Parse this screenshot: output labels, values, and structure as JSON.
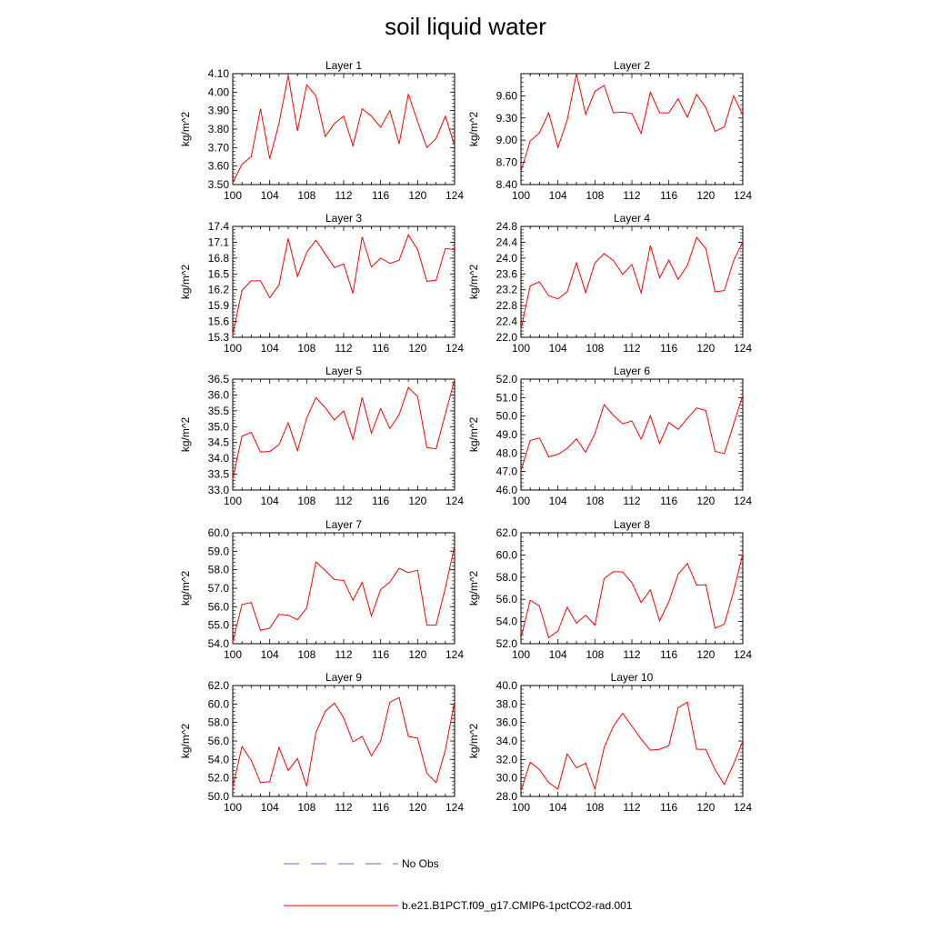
{
  "title": "soil liquid water",
  "legend": {
    "placement": "bottom",
    "items": [
      {
        "label": "No Obs",
        "style": "dashed",
        "color": "#6666cc"
      },
      {
        "label": "b.e21.B1PCT.f09_g17.CMIP6-1pctCO2-rad.001",
        "style": "solid",
        "color": "#ff0000"
      }
    ]
  },
  "chart_data": [
    {
      "type": "line",
      "title": "Layer 1",
      "ylabel": "kg/m^2",
      "xlim": [
        100,
        124
      ],
      "ylim": [
        3.5,
        4.1
      ],
      "xticks": [
        "100",
        "104",
        "108",
        "112",
        "116",
        "120",
        "124"
      ],
      "yticks": [
        "3.50",
        "3.60",
        "3.70",
        "3.80",
        "3.90",
        "4.00",
        "4.10"
      ],
      "x": [
        100,
        101,
        102,
        103,
        104,
        105,
        106,
        107,
        108,
        109,
        110,
        111,
        112,
        113,
        114,
        115,
        116,
        117,
        118,
        119,
        120,
        121,
        122,
        123,
        124
      ],
      "series": [
        {
          "name": "b.e21.B1PCT.f09_g17.CMIP6-1pctCO2-rad.001",
          "color": "#ff0000",
          "values": [
            3.51,
            3.61,
            3.65,
            3.91,
            3.64,
            3.83,
            4.09,
            3.79,
            4.04,
            3.98,
            3.76,
            3.83,
            3.87,
            3.71,
            3.91,
            3.87,
            3.81,
            3.9,
            3.72,
            3.99,
            3.84,
            3.7,
            3.75,
            3.87,
            3.71
          ]
        }
      ]
    },
    {
      "type": "line",
      "title": "Layer 2",
      "ylabel": "kg/m^2",
      "xlim": [
        100,
        124
      ],
      "ylim": [
        8.4,
        9.9
      ],
      "xticks": [
        "100",
        "104",
        "108",
        "112",
        "116",
        "120",
        "124"
      ],
      "yticks": [
        "8.40",
        "8.70",
        "9.00",
        "9.30",
        "9.60"
      ],
      "x": [
        100,
        101,
        102,
        103,
        104,
        105,
        106,
        107,
        108,
        109,
        110,
        111,
        112,
        113,
        114,
        115,
        116,
        117,
        118,
        119,
        120,
        121,
        122,
        123,
        124
      ],
      "series": [
        {
          "name": "b.e21.B1PCT.f09_g17.CMIP6-1pctCO2-rad.001",
          "color": "#ff0000",
          "values": [
            8.58,
            8.99,
            9.1,
            9.37,
            8.9,
            9.27,
            9.9,
            9.35,
            9.66,
            9.74,
            9.37,
            9.38,
            9.36,
            9.09,
            9.65,
            9.37,
            9.37,
            9.56,
            9.31,
            9.62,
            9.44,
            9.12,
            9.18,
            9.6,
            9.34
          ]
        }
      ]
    },
    {
      "type": "line",
      "title": "Layer 3",
      "ylabel": "kg/m^2",
      "xlim": [
        100,
        124
      ],
      "ylim": [
        15.3,
        17.4
      ],
      "xticks": [
        "100",
        "104",
        "108",
        "112",
        "116",
        "120",
        "124"
      ],
      "yticks": [
        "15.3",
        "15.6",
        "15.9",
        "16.2",
        "16.5",
        "16.8",
        "17.1",
        "17.4"
      ],
      "x": [
        100,
        101,
        102,
        103,
        104,
        105,
        106,
        107,
        108,
        109,
        110,
        111,
        112,
        113,
        114,
        115,
        116,
        117,
        118,
        119,
        120,
        121,
        122,
        123,
        124
      ],
      "series": [
        {
          "name": "b.e21.B1PCT.f09_g17.CMIP6-1pctCO2-rad.001",
          "color": "#ff0000",
          "values": [
            15.35,
            16.19,
            16.37,
            16.37,
            16.05,
            16.29,
            17.17,
            16.45,
            16.91,
            17.14,
            16.88,
            16.62,
            16.69,
            16.13,
            17.2,
            16.63,
            16.8,
            16.7,
            16.76,
            17.24,
            16.96,
            16.36,
            16.38,
            16.98,
            16.96
          ]
        }
      ]
    },
    {
      "type": "line",
      "title": "Layer 4",
      "ylabel": "kg/m^2",
      "xlim": [
        100,
        124
      ],
      "ylim": [
        22.0,
        24.8
      ],
      "xticks": [
        "100",
        "104",
        "108",
        "112",
        "116",
        "120",
        "124"
      ],
      "yticks": [
        "22.0",
        "22.4",
        "22.8",
        "23.2",
        "23.6",
        "24.0",
        "24.4",
        "24.8"
      ],
      "x": [
        100,
        101,
        102,
        103,
        104,
        105,
        106,
        107,
        108,
        109,
        110,
        111,
        112,
        113,
        114,
        115,
        116,
        117,
        118,
        119,
        120,
        121,
        122,
        123,
        124
      ],
      "series": [
        {
          "name": "b.e21.B1PCT.f09_g17.CMIP6-1pctCO2-rad.001",
          "color": "#ff0000",
          "values": [
            22.2,
            23.3,
            23.4,
            23.05,
            22.97,
            23.15,
            23.88,
            23.13,
            23.88,
            24.11,
            23.94,
            23.59,
            23.84,
            23.12,
            24.32,
            23.5,
            23.95,
            23.46,
            23.81,
            24.52,
            24.24,
            23.15,
            23.18,
            23.93,
            24.41
          ]
        }
      ]
    },
    {
      "type": "line",
      "title": "Layer 5",
      "ylabel": "kg/m^2",
      "xlim": [
        100,
        124
      ],
      "ylim": [
        33.0,
        36.5
      ],
      "xticks": [
        "100",
        "104",
        "108",
        "112",
        "116",
        "120",
        "124"
      ],
      "yticks": [
        "33.0",
        "33.5",
        "34.0",
        "34.5",
        "35.0",
        "35.5",
        "36.0",
        "36.5"
      ],
      "x": [
        100,
        101,
        102,
        103,
        104,
        105,
        106,
        107,
        108,
        109,
        110,
        111,
        112,
        113,
        114,
        115,
        116,
        117,
        118,
        119,
        120,
        121,
        122,
        123,
        124
      ],
      "series": [
        {
          "name": "b.e21.B1PCT.f09_g17.CMIP6-1pctCO2-rad.001",
          "color": "#ff0000",
          "values": [
            33.35,
            34.7,
            34.82,
            34.2,
            34.22,
            34.43,
            35.12,
            34.24,
            35.27,
            35.92,
            35.6,
            35.21,
            35.5,
            34.6,
            35.92,
            34.8,
            35.57,
            34.94,
            35.38,
            36.24,
            35.95,
            34.34,
            34.3,
            35.4,
            36.49
          ]
        }
      ]
    },
    {
      "type": "line",
      "title": "Layer 6",
      "ylabel": "kg/m^2",
      "xlim": [
        100,
        124
      ],
      "ylim": [
        46.0,
        52.0
      ],
      "xticks": [
        "100",
        "104",
        "108",
        "112",
        "116",
        "120",
        "124"
      ],
      "yticks": [
        "46.0",
        "47.0",
        "48.0",
        "49.0",
        "50.0",
        "51.0",
        "52.0"
      ],
      "x": [
        100,
        101,
        102,
        103,
        104,
        105,
        106,
        107,
        108,
        109,
        110,
        111,
        112,
        113,
        114,
        115,
        116,
        117,
        118,
        119,
        120,
        121,
        122,
        123,
        124
      ],
      "series": [
        {
          "name": "b.e21.B1PCT.f09_g17.CMIP6-1pctCO2-rad.001",
          "color": "#ff0000",
          "values": [
            47.05,
            48.68,
            48.82,
            47.8,
            47.93,
            48.25,
            48.77,
            48.04,
            49.05,
            50.62,
            50.04,
            49.58,
            49.74,
            48.75,
            50.02,
            48.51,
            49.66,
            49.28,
            49.87,
            50.44,
            50.3,
            48.09,
            47.97,
            49.55,
            51.14
          ]
        }
      ]
    },
    {
      "type": "line",
      "title": "Layer 7",
      "ylabel": "kg/m^2",
      "xlim": [
        100,
        124
      ],
      "ylim": [
        54.0,
        60.0
      ],
      "xticks": [
        "100",
        "104",
        "108",
        "112",
        "116",
        "120",
        "124"
      ],
      "yticks": [
        "54.0",
        "55.0",
        "56.0",
        "57.0",
        "58.0",
        "59.0",
        "60.0"
      ],
      "x": [
        100,
        101,
        102,
        103,
        104,
        105,
        106,
        107,
        108,
        109,
        110,
        111,
        112,
        113,
        114,
        115,
        116,
        117,
        118,
        119,
        120,
        121,
        122,
        123,
        124
      ],
      "series": [
        {
          "name": "b.e21.B1PCT.f09_g17.CMIP6-1pctCO2-rad.001",
          "color": "#ff0000",
          "values": [
            54.1,
            56.12,
            56.23,
            54.72,
            54.84,
            55.59,
            55.54,
            55.3,
            55.93,
            58.42,
            57.96,
            57.47,
            57.42,
            56.35,
            57.32,
            55.51,
            56.93,
            57.33,
            58.08,
            57.84,
            57.98,
            55.0,
            55.0,
            57.02,
            59.29
          ]
        }
      ]
    },
    {
      "type": "line",
      "title": "Layer 8",
      "ylabel": "kg/m^2",
      "xlim": [
        100,
        124
      ],
      "ylim": [
        52.0,
        62.0
      ],
      "xticks": [
        "100",
        "104",
        "108",
        "112",
        "116",
        "120",
        "124"
      ],
      "yticks": [
        "52.0",
        "54.0",
        "56.0",
        "58.0",
        "60.0",
        "62.0"
      ],
      "x": [
        100,
        101,
        102,
        103,
        104,
        105,
        106,
        107,
        108,
        109,
        110,
        111,
        112,
        113,
        114,
        115,
        116,
        117,
        118,
        119,
        120,
        121,
        122,
        123,
        124
      ],
      "series": [
        {
          "name": "b.e21.B1PCT.f09_g17.CMIP6-1pctCO2-rad.001",
          "color": "#ff0000",
          "values": [
            52.5,
            55.92,
            55.4,
            52.54,
            53.14,
            55.3,
            53.85,
            54.57,
            53.67,
            57.87,
            58.5,
            58.47,
            57.5,
            55.71,
            56.86,
            54.06,
            55.78,
            58.25,
            59.24,
            57.28,
            57.32,
            53.4,
            53.75,
            56.67,
            60.14
          ]
        }
      ]
    },
    {
      "type": "line",
      "title": "Layer 9",
      "ylabel": "kg/m^2",
      "xlim": [
        100,
        124
      ],
      "ylim": [
        50.0,
        62.0
      ],
      "xticks": [
        "100",
        "104",
        "108",
        "112",
        "116",
        "120",
        "124"
      ],
      "yticks": [
        "50.0",
        "52.0",
        "54.0",
        "56.0",
        "58.0",
        "60.0",
        "62.0"
      ],
      "x": [
        100,
        101,
        102,
        103,
        104,
        105,
        106,
        107,
        108,
        109,
        110,
        111,
        112,
        113,
        114,
        115,
        116,
        117,
        118,
        119,
        120,
        121,
        122,
        123,
        124
      ],
      "series": [
        {
          "name": "b.e21.B1PCT.f09_g17.CMIP6-1pctCO2-rad.001",
          "color": "#ff0000",
          "values": [
            51.0,
            55.4,
            53.9,
            51.5,
            51.6,
            55.3,
            52.8,
            54.1,
            51.1,
            56.9,
            59.2,
            60.1,
            58.5,
            55.9,
            56.5,
            54.4,
            56.0,
            60.2,
            60.7,
            56.5,
            56.3,
            52.5,
            51.5,
            55.0,
            60.3
          ]
        }
      ]
    },
    {
      "type": "line",
      "title": "Layer 10",
      "ylabel": "kg/m^2",
      "xlim": [
        100,
        124
      ],
      "ylim": [
        28.0,
        40.0
      ],
      "xticks": [
        "100",
        "104",
        "108",
        "112",
        "116",
        "120",
        "124"
      ],
      "yticks": [
        "28.0",
        "30.0",
        "32.0",
        "34.0",
        "36.0",
        "38.0",
        "40.0"
      ],
      "x": [
        100,
        101,
        102,
        103,
        104,
        105,
        106,
        107,
        108,
        109,
        110,
        111,
        112,
        113,
        114,
        115,
        116,
        117,
        118,
        119,
        120,
        121,
        122,
        123,
        124
      ],
      "series": [
        {
          "name": "b.e21.B1PCT.f09_g17.CMIP6-1pctCO2-rad.001",
          "color": "#ff0000",
          "values": [
            28.6,
            31.7,
            30.9,
            29.5,
            28.8,
            32.6,
            31.1,
            31.6,
            28.8,
            33.3,
            35.6,
            37.0,
            35.6,
            34.2,
            33.0,
            33.1,
            33.5,
            37.6,
            38.2,
            33.1,
            33.1,
            30.9,
            29.3,
            31.5,
            34.0
          ]
        }
      ]
    }
  ]
}
